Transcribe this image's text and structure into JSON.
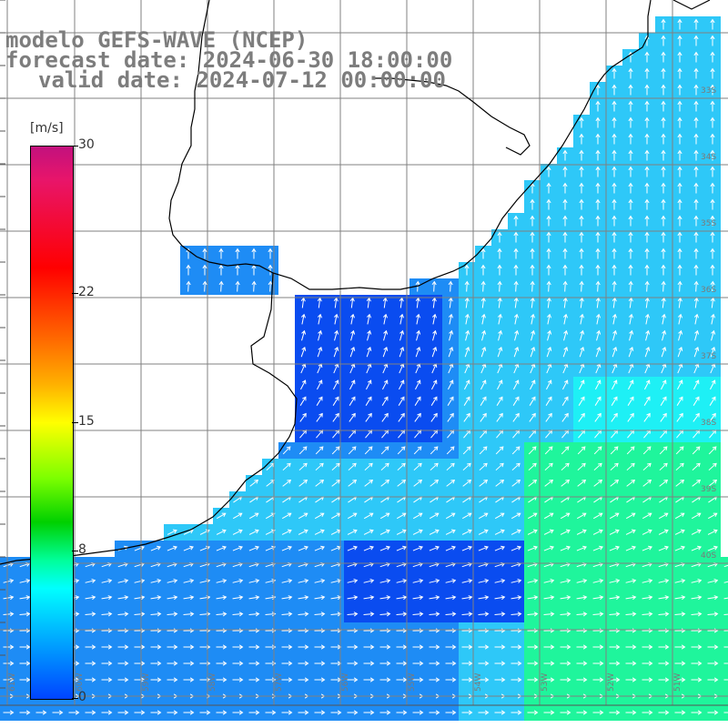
{
  "title": {
    "model": "modelo GEFS-WAVE (NCEP)",
    "forecast": "forecast date: 2024-06-30 18:00:00",
    "valid": "valid date: 2024-07-12 00:00:00"
  },
  "colorbar": {
    "unit": "[m/s]",
    "ticks": [
      "30",
      "22",
      "15",
      "8",
      "0"
    ],
    "tick_values": [
      30,
      22,
      15,
      8,
      0
    ],
    "range": [
      0,
      30
    ]
  },
  "lat_labels": [
    "33S",
    "34S",
    "35S",
    "36S",
    "37S",
    "38S",
    "39S",
    "40S"
  ],
  "lon_labels": [
    "61W",
    "60W",
    "59W",
    "58W",
    "57W",
    "56W",
    "55W",
    "54W",
    "53W",
    "52W",
    "51W"
  ],
  "colors": {
    "deep_blue": "#0a4cf0",
    "blue": "#1e8cf5",
    "light_blue": "#2ec8f8",
    "cyan": "#1ef0f5",
    "green": "#1ff59c",
    "arrow": "#ffffff",
    "grid": "#808080",
    "coast": "#000000"
  }
}
